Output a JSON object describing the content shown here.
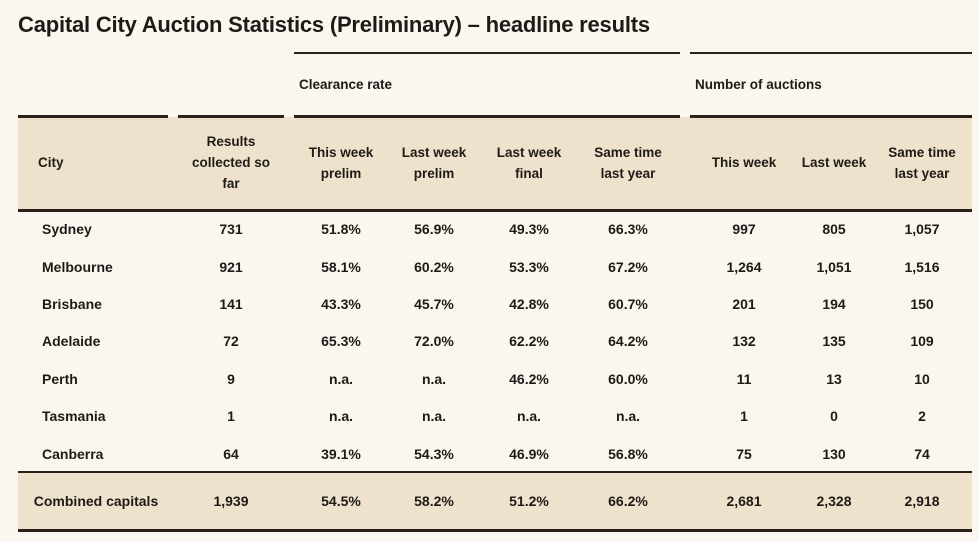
{
  "title": "Capital City Auction Statistics (Preliminary) – headline results",
  "groups": {
    "clearance": "Clearance rate",
    "auctions": "Number of auctions"
  },
  "headers": {
    "city": "City",
    "results": "Results collected so far",
    "cr_this": "This week prelim",
    "cr_last_prelim": "Last week prelim",
    "cr_last_final": "Last week final",
    "cr_same": "Same time last year",
    "na_this": "This week",
    "na_last": "Last week",
    "na_same": "Same time last year"
  },
  "rows": [
    [
      "Sydney",
      "731",
      "51.8%",
      "56.9%",
      "49.3%",
      "66.3%",
      "997",
      "805",
      "1,057"
    ],
    [
      "Melbourne",
      "921",
      "58.1%",
      "60.2%",
      "53.3%",
      "67.2%",
      "1,264",
      "1,051",
      "1,516"
    ],
    [
      "Brisbane",
      "141",
      "43.3%",
      "45.7%",
      "42.8%",
      "60.7%",
      "201",
      "194",
      "150"
    ],
    [
      "Adelaide",
      "72",
      "65.3%",
      "72.0%",
      "62.2%",
      "64.2%",
      "132",
      "135",
      "109"
    ],
    [
      "Perth",
      "9",
      "n.a.",
      "n.a.",
      "46.2%",
      "60.0%",
      "11",
      "13",
      "10"
    ],
    [
      "Tasmania",
      "1",
      "n.a.",
      "n.a.",
      "n.a.",
      "n.a.",
      "1",
      "0",
      "2"
    ],
    [
      "Canberra",
      "64",
      "39.1%",
      "54.3%",
      "46.9%",
      "56.8%",
      "75",
      "130",
      "74"
    ]
  ],
  "total": [
    "Combined capitals",
    "1,939",
    "54.5%",
    "58.2%",
    "51.2%",
    "66.2%",
    "2,681",
    "2,328",
    "2,918"
  ]
}
